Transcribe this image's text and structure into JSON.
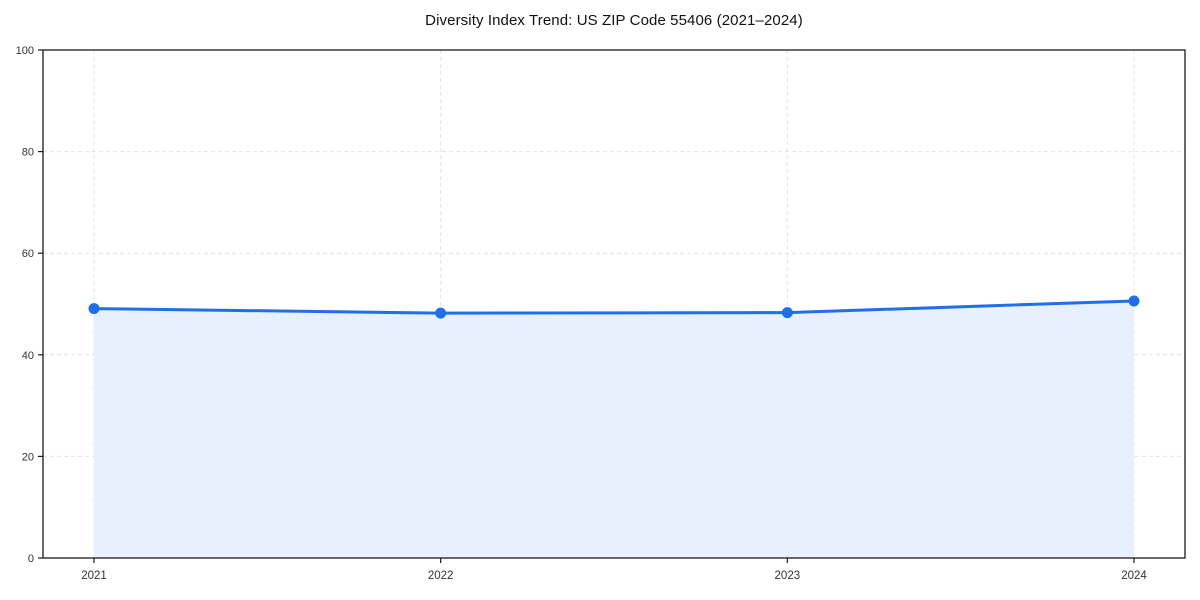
{
  "chart_data": {
    "type": "line",
    "title": "Diversity Index Trend: US ZIP Code 55406 (2021–2024)",
    "x": [
      "2021",
      "2022",
      "2023",
      "2024"
    ],
    "series": [
      {
        "name": "Diversity Index",
        "values": [
          49.1,
          48.2,
          48.3,
          50.6
        ]
      }
    ],
    "xlabel": "",
    "ylabel": "",
    "ylim": [
      0,
      100
    ],
    "yticks": [
      0,
      20,
      40,
      60,
      80,
      100
    ],
    "grid": "dashed-both-axes",
    "legend": "none",
    "area_fill": true,
    "marker": "circle",
    "colors": {
      "line": "#1e6fe8",
      "marker": "#1e6fe8",
      "area_fill": "#e8f0fd",
      "grid": "#e4e4e4",
      "spine": "#1a1a1a",
      "tick_label": "#333333",
      "background": "#ffffff"
    }
  }
}
